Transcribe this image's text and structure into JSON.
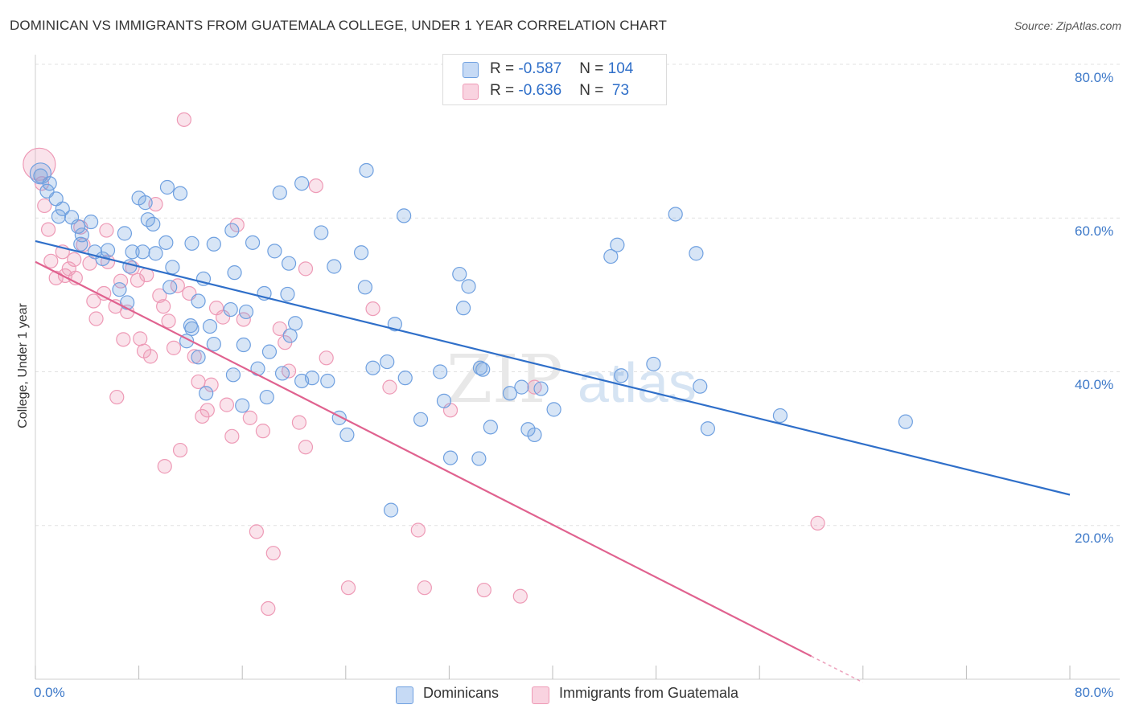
{
  "title": "DOMINICAN VS IMMIGRANTS FROM GUATEMALA COLLEGE, UNDER 1 YEAR CORRELATION CHART",
  "source": "Source: ZipAtlas.com",
  "legend": {
    "row1": {
      "r_label": "R = ",
      "r_value": "-0.587",
      "n_label": "N = ",
      "n_value": "104"
    },
    "row2": {
      "r_label": "R = ",
      "r_value": "-0.636",
      "n_label": "N = ",
      "n_value": " 73"
    }
  },
  "colors": {
    "blue": "#6fa0e0",
    "blue_line": "#2f6fc9",
    "pink": "#ee9ab6",
    "pink_line": "#e0628f",
    "tick_text": "#3c78c8"
  },
  "chart_data": {
    "type": "scatter",
    "ylabel": "College, Under 1 year",
    "xlim": [
      0,
      80
    ],
    "ylim": [
      0,
      80
    ],
    "x_tick_labels": {
      "left": "0.0%",
      "right": "80.0%"
    },
    "y_tick_labels": [
      "80.0%",
      "60.0%",
      "40.0%",
      "20.0%"
    ],
    "y_ticks": [
      80,
      60,
      40,
      20
    ],
    "grid": true,
    "watermark": "ZIPatlas",
    "series": [
      {
        "name": "Dominicans",
        "color": "#6fa0e0",
        "trend": {
          "x": [
            0,
            80
          ],
          "y": [
            57.0,
            24.0
          ]
        },
        "points": [
          [
            0.4,
            65.5
          ],
          [
            1.1,
            64.5
          ],
          [
            1.6,
            62.5
          ],
          [
            2.1,
            61.2
          ],
          [
            2.8,
            60.1
          ],
          [
            3.3,
            58.9
          ],
          [
            4.3,
            59.5
          ],
          [
            3.5,
            56.6
          ],
          [
            4.6,
            55.6
          ],
          [
            5.2,
            54.7
          ],
          [
            5.6,
            55.8
          ],
          [
            6.9,
            58.0
          ],
          [
            7.5,
            55.6
          ],
          [
            8.3,
            55.6
          ],
          [
            7.3,
            53.7
          ],
          [
            6.5,
            50.7
          ],
          [
            7.1,
            49.0
          ],
          [
            8.7,
            59.8
          ],
          [
            9.1,
            59.2
          ],
          [
            10.1,
            56.8
          ],
          [
            10.6,
            53.6
          ],
          [
            10.4,
            51.0
          ],
          [
            8.0,
            62.6
          ],
          [
            11.2,
            63.2
          ],
          [
            12.1,
            56.7
          ],
          [
            13.8,
            56.6
          ],
          [
            13.0,
            52.1
          ],
          [
            12.6,
            49.2
          ],
          [
            12.1,
            45.6
          ],
          [
            13.5,
            45.9
          ],
          [
            11.7,
            44.0
          ],
          [
            13.8,
            43.6
          ],
          [
            12.6,
            41.9
          ],
          [
            15.2,
            58.4
          ],
          [
            16.8,
            56.8
          ],
          [
            15.4,
            52.9
          ],
          [
            16.3,
            47.8
          ],
          [
            17.7,
            50.2
          ],
          [
            18.5,
            55.7
          ],
          [
            19.6,
            54.1
          ],
          [
            19.5,
            50.1
          ],
          [
            20.1,
            46.3
          ],
          [
            18.1,
            42.6
          ],
          [
            19.7,
            44.7
          ],
          [
            16.1,
            43.5
          ],
          [
            17.2,
            40.4
          ],
          [
            15.3,
            39.6
          ],
          [
            17.9,
            36.7
          ],
          [
            19.1,
            39.8
          ],
          [
            21.4,
            39.2
          ],
          [
            20.6,
            38.8
          ],
          [
            18.9,
            63.3
          ],
          [
            22.1,
            58.1
          ],
          [
            23.1,
            53.7
          ],
          [
            25.2,
            55.5
          ],
          [
            25.5,
            51.0
          ],
          [
            23.5,
            34.0
          ],
          [
            24.1,
            31.8
          ],
          [
            26.1,
            40.5
          ],
          [
            27.2,
            41.3
          ],
          [
            28.6,
            39.2
          ],
          [
            29.8,
            33.8
          ],
          [
            31.3,
            40.0
          ],
          [
            31.6,
            36.2
          ],
          [
            32.1,
            28.8
          ],
          [
            32.8,
            52.7
          ],
          [
            33.5,
            51.1
          ],
          [
            33.1,
            48.3
          ],
          [
            34.3,
            28.7
          ],
          [
            34.6,
            40.3
          ],
          [
            34.4,
            40.5
          ],
          [
            35.2,
            32.8
          ],
          [
            36.7,
            37.2
          ],
          [
            37.6,
            38.0
          ],
          [
            38.1,
            32.5
          ],
          [
            38.6,
            31.8
          ],
          [
            39.1,
            37.8
          ],
          [
            40.1,
            35.1
          ],
          [
            28.5,
            60.3
          ],
          [
            25.6,
            66.2
          ],
          [
            27.8,
            46.2
          ],
          [
            20.6,
            64.5
          ],
          [
            13.2,
            37.2
          ],
          [
            16.0,
            35.6
          ],
          [
            22.6,
            38.8
          ],
          [
            15.1,
            48.1
          ],
          [
            12.0,
            46.0
          ],
          [
            8.5,
            62.0
          ],
          [
            10.2,
            64.0
          ],
          [
            45.0,
            56.5
          ],
          [
            44.5,
            55.0
          ],
          [
            45.3,
            39.5
          ],
          [
            47.8,
            41.0
          ],
          [
            49.5,
            60.5
          ],
          [
            51.1,
            55.4
          ],
          [
            51.4,
            38.1
          ],
          [
            52.0,
            32.6
          ],
          [
            57.6,
            34.3
          ],
          [
            67.3,
            33.5
          ],
          [
            27.5,
            22.0
          ],
          [
            0.9,
            63.5
          ],
          [
            1.8,
            60.2
          ],
          [
            3.6,
            57.8
          ],
          [
            9.3,
            55.4
          ]
        ]
      },
      {
        "name": "Immigrants from Guatemala",
        "color": "#ee9ab6",
        "trend": {
          "x": [
            0,
            60
          ],
          "y": [
            54.3,
            3.0
          ]
        },
        "points": [
          [
            0.5,
            64.5
          ],
          [
            0.7,
            61.6
          ],
          [
            1.0,
            58.5
          ],
          [
            1.2,
            54.4
          ],
          [
            1.6,
            52.2
          ],
          [
            2.1,
            55.6
          ],
          [
            2.6,
            53.4
          ],
          [
            3.0,
            54.6
          ],
          [
            3.5,
            58.8
          ],
          [
            3.7,
            56.5
          ],
          [
            4.2,
            54.1
          ],
          [
            4.5,
            49.2
          ],
          [
            4.7,
            46.9
          ],
          [
            5.3,
            50.2
          ],
          [
            5.6,
            54.3
          ],
          [
            5.5,
            58.4
          ],
          [
            6.2,
            48.5
          ],
          [
            6.6,
            51.8
          ],
          [
            6.8,
            44.2
          ],
          [
            7.1,
            47.8
          ],
          [
            7.5,
            53.5
          ],
          [
            7.9,
            51.9
          ],
          [
            8.1,
            44.3
          ],
          [
            8.4,
            42.7
          ],
          [
            8.6,
            52.6
          ],
          [
            8.9,
            42.0
          ],
          [
            9.3,
            61.8
          ],
          [
            9.6,
            49.9
          ],
          [
            9.9,
            48.5
          ],
          [
            10.3,
            46.6
          ],
          [
            10.7,
            43.1
          ],
          [
            11.0,
            51.2
          ],
          [
            11.5,
            72.8
          ],
          [
            11.9,
            50.2
          ],
          [
            12.3,
            42.0
          ],
          [
            12.6,
            38.7
          ],
          [
            12.9,
            34.2
          ],
          [
            13.3,
            35.0
          ],
          [
            13.6,
            38.3
          ],
          [
            14.0,
            48.3
          ],
          [
            14.5,
            47.1
          ],
          [
            14.8,
            35.7
          ],
          [
            15.2,
            31.6
          ],
          [
            15.6,
            59.1
          ],
          [
            16.1,
            46.8
          ],
          [
            16.6,
            34.0
          ],
          [
            17.1,
            19.2
          ],
          [
            17.6,
            32.3
          ],
          [
            18.0,
            9.2
          ],
          [
            18.4,
            16.4
          ],
          [
            18.9,
            45.6
          ],
          [
            19.3,
            43.8
          ],
          [
            19.6,
            40.1
          ],
          [
            20.4,
            33.4
          ],
          [
            20.9,
            30.2
          ],
          [
            21.7,
            64.2
          ],
          [
            22.5,
            41.8
          ],
          [
            24.2,
            11.9
          ],
          [
            26.1,
            48.2
          ],
          [
            27.4,
            38.0
          ],
          [
            29.6,
            19.4
          ],
          [
            30.1,
            11.9
          ],
          [
            32.1,
            35.0
          ],
          [
            34.7,
            11.6
          ],
          [
            37.5,
            10.8
          ],
          [
            38.6,
            38.0
          ],
          [
            60.5,
            20.3
          ],
          [
            10.0,
            27.7
          ],
          [
            11.2,
            29.8
          ],
          [
            6.3,
            36.7
          ],
          [
            2.3,
            52.5
          ],
          [
            3.1,
            52.2
          ],
          [
            20.9,
            53.4
          ]
        ]
      }
    ]
  },
  "bottom_legend": {
    "series1": "Dominicans",
    "series2": "Immigrants from Guatemala"
  }
}
